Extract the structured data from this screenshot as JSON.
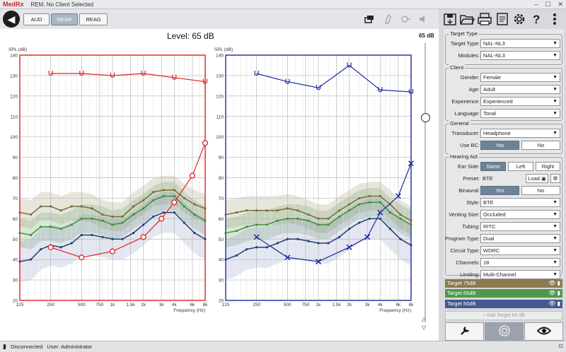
{
  "window": {
    "logo": "MedRx",
    "title": "REM, No Client Selected",
    "min": "–",
    "max": "☐",
    "close": "✕"
  },
  "toolbar": {
    "back_glyph": "◀",
    "tabs": [
      {
        "label": "AUD",
        "active": false
      },
      {
        "label": "REAR",
        "active": true
      },
      {
        "label": "REAG",
        "active": false
      }
    ],
    "icons": [
      "window-icon",
      "hearing-aid-icon",
      "probe-icon",
      "speaker-icon"
    ]
  },
  "right_toolbar": {
    "icons": [
      "save-icon",
      "open-folder-icon",
      "print-icon",
      "report-icon",
      "gear-icon",
      "help-icon",
      "more-vert-icon"
    ]
  },
  "level": {
    "text": "Level: 65 dB",
    "slider_label": "65 dB",
    "slider_fraction": 0.27
  },
  "chart_data": [
    {
      "type": "line",
      "side": "right-ear",
      "ylabel": "SPL (dB)",
      "xlabel": "Frequency (Hz)",
      "ylim": [
        20,
        140
      ],
      "yticks": [
        20,
        30,
        40,
        50,
        60,
        70,
        80,
        90,
        100,
        110,
        120,
        130,
        140
      ],
      "xtick_labels": [
        "125",
        "250",
        "500",
        "750",
        "1k",
        "1.5k",
        "2k",
        "3k",
        "4k",
        "6k",
        "8k"
      ],
      "xticks_hz": [
        125,
        250,
        500,
        750,
        1000,
        1500,
        2000,
        3000,
        4000,
        6000,
        8000
      ],
      "color": "#e02020",
      "series": [
        {
          "role": "target-75",
          "color": "#7a6a3a",
          "values": [
            [
              125,
              63
            ],
            [
              160,
              62
            ],
            [
              200,
              66
            ],
            [
              250,
              66
            ],
            [
              315,
              64
            ],
            [
              400,
              66
            ],
            [
              500,
              66
            ],
            [
              630,
              65
            ],
            [
              800,
              62
            ],
            [
              1000,
              61
            ],
            [
              1250,
              61
            ],
            [
              1600,
              66
            ],
            [
              2000,
              69
            ],
            [
              2500,
              73
            ],
            [
              3150,
              74
            ],
            [
              4000,
              74
            ],
            [
              5000,
              70
            ],
            [
              6300,
              67
            ],
            [
              8000,
              65
            ]
          ]
        },
        {
          "role": "target-65",
          "color": "#3f8f3a",
          "values": [
            [
              125,
              53
            ],
            [
              160,
              52
            ],
            [
              200,
              56
            ],
            [
              250,
              56
            ],
            [
              315,
              55
            ],
            [
              400,
              57
            ],
            [
              500,
              60
            ],
            [
              630,
              60
            ],
            [
              800,
              59
            ],
            [
              1000,
              57
            ],
            [
              1250,
              58
            ],
            [
              1600,
              62
            ],
            [
              2000,
              65
            ],
            [
              2500,
              69
            ],
            [
              3150,
              71
            ],
            [
              4000,
              71
            ],
            [
              5000,
              66
            ],
            [
              6300,
              62
            ],
            [
              8000,
              59
            ]
          ]
        },
        {
          "role": "target-50",
          "color": "#1f3f6f",
          "values": [
            [
              125,
              39
            ],
            [
              160,
              40
            ],
            [
              200,
              45
            ],
            [
              250,
              47
            ],
            [
              315,
              46
            ],
            [
              400,
              48
            ],
            [
              500,
              52
            ],
            [
              630,
              52
            ],
            [
              800,
              51
            ],
            [
              1000,
              50
            ],
            [
              1250,
              50
            ],
            [
              1600,
              53
            ],
            [
              2000,
              57
            ],
            [
              2500,
              61
            ],
            [
              3150,
              63
            ],
            [
              4000,
              63
            ],
            [
              5000,
              58
            ],
            [
              6300,
              53
            ],
            [
              8000,
              50
            ]
          ]
        },
        {
          "role": "mpo",
          "color": "#e02020",
          "marker": "U",
          "values": [
            [
              250,
              131
            ],
            [
              500,
              131
            ],
            [
              1000,
              130
            ],
            [
              2000,
              131
            ],
            [
              4000,
              129
            ],
            [
              8000,
              127
            ]
          ]
        },
        {
          "role": "measured",
          "color": "#e02020",
          "marker": "o",
          "values": [
            [
              250,
              46
            ],
            [
              500,
              41
            ],
            [
              1000,
              44
            ],
            [
              2000,
              51
            ],
            [
              3000,
              60
            ],
            [
              4000,
              68
            ],
            [
              6000,
              81
            ],
            [
              8000,
              97
            ]
          ]
        }
      ]
    },
    {
      "type": "line",
      "side": "left-ear",
      "ylabel": "SPL (dB)",
      "xlabel": "Frequency (Hz)",
      "ylim": [
        20,
        140
      ],
      "yticks": [
        20,
        30,
        40,
        50,
        60,
        70,
        80,
        90,
        100,
        110,
        120,
        130,
        140
      ],
      "xtick_labels": [
        "125",
        "250",
        "500",
        "750",
        "1k",
        "1.5k",
        "2k",
        "3k",
        "4k",
        "6k",
        "8k"
      ],
      "xticks_hz": [
        125,
        250,
        500,
        750,
        1000,
        1500,
        2000,
        3000,
        4000,
        6000,
        8000
      ],
      "color": "#1a2a9a",
      "series": [
        {
          "role": "target-75",
          "color": "#7a6a3a",
          "values": [
            [
              125,
              62
            ],
            [
              160,
              63
            ],
            [
              200,
              64
            ],
            [
              250,
              64
            ],
            [
              315,
              64
            ],
            [
              400,
              64
            ],
            [
              500,
              65
            ],
            [
              630,
              64
            ],
            [
              800,
              62
            ],
            [
              1000,
              60
            ],
            [
              1250,
              60
            ],
            [
              1600,
              64
            ],
            [
              2000,
              67
            ],
            [
              2500,
              70
            ],
            [
              3150,
              71
            ],
            [
              4000,
              71
            ],
            [
              5000,
              67
            ],
            [
              6300,
              62
            ],
            [
              8000,
              59
            ]
          ]
        },
        {
          "role": "target-65",
          "color": "#3f8f3a",
          "values": [
            [
              125,
              53
            ],
            [
              160,
              54
            ],
            [
              200,
              56
            ],
            [
              250,
              57
            ],
            [
              315,
              57
            ],
            [
              400,
              59
            ],
            [
              500,
              60
            ],
            [
              630,
              60
            ],
            [
              800,
              59
            ],
            [
              1000,
              57
            ],
            [
              1250,
              57
            ],
            [
              1600,
              61
            ],
            [
              2000,
              64
            ],
            [
              2500,
              67
            ],
            [
              3150,
              68
            ],
            [
              4000,
              68
            ],
            [
              5000,
              63
            ],
            [
              6300,
              60
            ],
            [
              8000,
              57
            ]
          ]
        },
        {
          "role": "target-50",
          "color": "#1f3f6f",
          "values": [
            [
              125,
              40
            ],
            [
              160,
              42
            ],
            [
              200,
              45
            ],
            [
              250,
              46
            ],
            [
              315,
              46
            ],
            [
              400,
              48
            ],
            [
              500,
              50
            ],
            [
              630,
              50
            ],
            [
              800,
              49
            ],
            [
              1000,
              48
            ],
            [
              1250,
              48
            ],
            [
              1600,
              51
            ],
            [
              2000,
              55
            ],
            [
              2500,
              58
            ],
            [
              3150,
              60
            ],
            [
              4000,
              60
            ],
            [
              5000,
              55
            ],
            [
              6300,
              50
            ],
            [
              8000,
              47
            ]
          ]
        },
        {
          "role": "mpo",
          "color": "#1a2a9a",
          "marker": "U",
          "values": [
            [
              250,
              131
            ],
            [
              500,
              127
            ],
            [
              1000,
              124
            ],
            [
              2000,
              135
            ],
            [
              4000,
              123
            ],
            [
              8000,
              122
            ]
          ]
        },
        {
          "role": "measured",
          "color": "#1a2a9a",
          "marker": "x",
          "values": [
            [
              250,
              51
            ],
            [
              500,
              41
            ],
            [
              1000,
              39
            ],
            [
              2000,
              46
            ],
            [
              3000,
              51
            ],
            [
              4000,
              63
            ],
            [
              6000,
              71
            ],
            [
              8000,
              87
            ]
          ]
        }
      ]
    }
  ],
  "panel": {
    "target_type": {
      "title": "Target Type",
      "rows": [
        {
          "label": "Target Type:",
          "value": "NAL-NL3"
        },
        {
          "label": "Modules:",
          "value": "NAL-NL3"
        }
      ]
    },
    "client": {
      "title": "Client",
      "rows": [
        {
          "label": "Gender:",
          "value": "Female"
        },
        {
          "label": "Age:",
          "value": "Adult"
        },
        {
          "label": "Experience:",
          "value": "Experienced"
        },
        {
          "label": "Language:",
          "value": "Tonal"
        }
      ]
    },
    "general": {
      "title": "General",
      "transducer_label": "Transducer:",
      "transducer_value": "Headphone",
      "usebc_label": "Use BC:",
      "yes": "Yes",
      "no": "No"
    },
    "hearing_aid": {
      "title": "Hearing Aid",
      "ear_side_label": "Ear Side:",
      "same": "Same",
      "left": "Left",
      "right": "Right",
      "preset_label": "Preset:",
      "preset_value": "BTE",
      "load": "Load",
      "binaural_label": "Binaural:",
      "yes": "Yes",
      "no": "No",
      "rows": [
        {
          "label": "Style:",
          "value": "BTE"
        },
        {
          "label": "Venting Size:",
          "value": "Occluded"
        },
        {
          "label": "Tubing:",
          "value": "RITC"
        },
        {
          "label": "Program Type:",
          "value": "Dual"
        },
        {
          "label": "Circuit Type:",
          "value": "WDRC"
        },
        {
          "label": "Channels:",
          "value": "18"
        },
        {
          "label": "Limiting:",
          "value": "Multi-Channel"
        }
      ]
    }
  },
  "targets": [
    {
      "label": "Target 75dB",
      "color": "#8b7a4f"
    },
    {
      "label": "Target 65dB",
      "color": "#4f9a4a"
    },
    {
      "label": "Target 50dB",
      "color": "#47588f"
    }
  ],
  "add_target": "+  Add Target 65 dB",
  "bottom_tabs": [
    {
      "icon": "wrench-icon",
      "glyph": "🔧",
      "active": false
    },
    {
      "icon": "target-icon",
      "glyph": "◎",
      "active": true
    },
    {
      "icon": "eye-icon",
      "glyph": "👁",
      "active": false
    }
  ],
  "status": {
    "text": "Disconnected",
    "user": "User: Administrator"
  }
}
